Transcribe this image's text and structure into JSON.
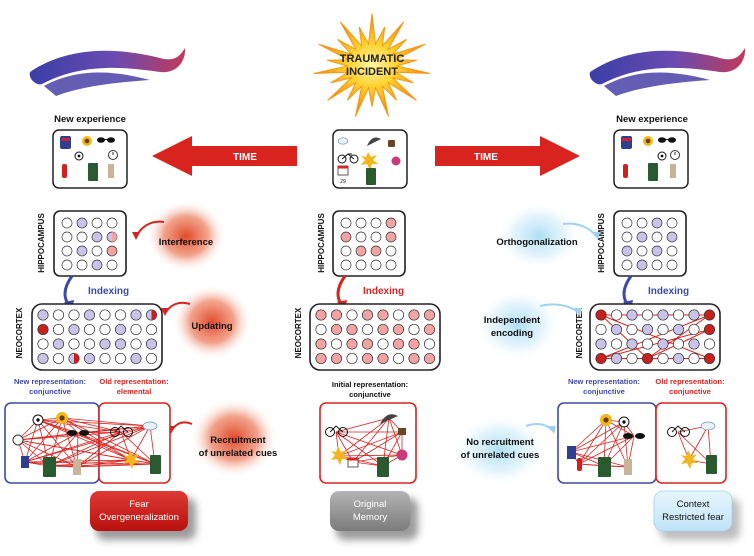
{
  "center": {
    "incident_line1": "TRAUMATIC",
    "incident_line2": "INCIDENT",
    "hippocampus": "HIPPOCAMPUS",
    "indexing": "Indexing",
    "neocortex": "NEOCORTEX",
    "initial_rep_line1": "Initial representation:",
    "initial_rep_line2": "conjunctive",
    "date_label": "29",
    "result_line1": "Original",
    "result_line2": "Memory"
  },
  "time_left": "TIME",
  "time_right": "TIME",
  "left": {
    "new_experience": "New experience",
    "hippocampus": "HIPPOCAMPUS",
    "neocortex": "NEOCORTEX",
    "indexing": "Indexing",
    "interference": "Interference",
    "updating": "Updating",
    "recruitment_line1": "Recruitment",
    "recruitment_line2": "of unrelated cues",
    "new_rep_line1": "New representation:",
    "new_rep_line2": "conjunctive",
    "old_rep_line1": "Old representation:",
    "old_rep_line2": "elemental",
    "result_line1": "Fear",
    "result_line2": "Overgeneralization"
  },
  "right": {
    "new_experience": "New experience",
    "hippocampus": "HIPPOCAMPUS",
    "neocortex": "NEOCORTEX",
    "indexing": "Indexing",
    "orthogonalization": "Orthogonalization",
    "independent_line1": "Independent",
    "independent_line2": "encoding",
    "norecruit_line1": "No recruitment",
    "norecruit_line2": "of unrelated cues",
    "new_rep_line1": "New representation:",
    "new_rep_line2": "conjunctive",
    "old_rep_line1": "Old representation:",
    "old_rep_line2": "conjunctive",
    "result_line1": "Context",
    "result_line2": "Restricted fear"
  },
  "colors": {
    "red": "#d9231f",
    "blue": "#3b4aa8",
    "pink": "#f2a3a3",
    "lavender": "#c9c3ea",
    "dark_red_fill": "#c8201c",
    "glow_red": "#e24a2a",
    "glow_blue": "#bfe3f6"
  }
}
